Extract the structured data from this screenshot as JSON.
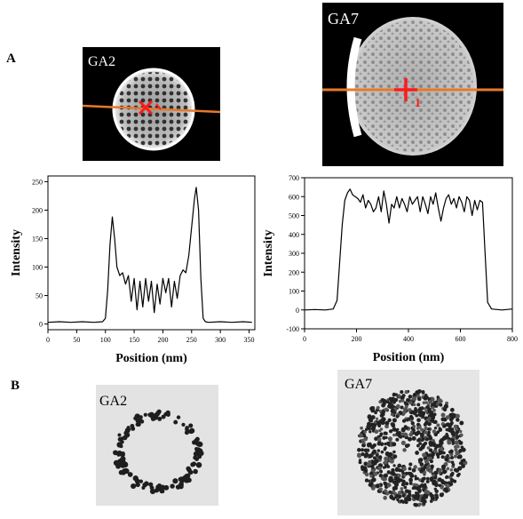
{
  "figure": {
    "panels": [
      {
        "letter": "A"
      },
      {
        "letter": "B"
      }
    ],
    "images": {
      "top_left_label": "GA2",
      "top_right_label": "GA7",
      "bottom_left_label": "GA2",
      "bottom_right_label": "GA7",
      "marker_label": "1"
    },
    "colors": {
      "profile_line": "#e8782a",
      "cursor": "#ff1a1a",
      "plot_line": "#000000"
    }
  },
  "chart_data": [
    {
      "type": "line",
      "title": "",
      "xlabel": "Position (nm)",
      "ylabel": "Intensity",
      "xlim": [
        0,
        360
      ],
      "ylim": [
        -10,
        260
      ],
      "xticks": [
        0,
        50,
        100,
        150,
        200,
        250,
        300,
        350
      ],
      "yticks": [
        0,
        50,
        100,
        150,
        200,
        250
      ],
      "grid": false,
      "series": [
        {
          "x": [
            0,
            20,
            40,
            60,
            80,
            95,
            100,
            104,
            108,
            112,
            116,
            120,
            125,
            130,
            135,
            140,
            145,
            150,
            155,
            160,
            165,
            170,
            175,
            180,
            185,
            190,
            195,
            200,
            205,
            210,
            215,
            220,
            225,
            230,
            235,
            240,
            245,
            250,
            255,
            258,
            262,
            266,
            270,
            274,
            280,
            300,
            320,
            340,
            355
          ],
          "y": [
            3,
            4,
            3,
            4,
            3,
            4,
            10,
            60,
            140,
            188,
            150,
            100,
            85,
            90,
            70,
            85,
            40,
            80,
            25,
            75,
            30,
            80,
            40,
            75,
            20,
            70,
            35,
            80,
            55,
            80,
            30,
            75,
            45,
            85,
            95,
            90,
            120,
            170,
            220,
            240,
            200,
            80,
            10,
            4,
            3,
            4,
            3,
            4,
            3
          ]
        }
      ]
    },
    {
      "type": "line",
      "title": "",
      "xlabel": "Position (nm)",
      "ylabel": "Intensity",
      "xlim": [
        0,
        800
      ],
      "ylim": [
        -100,
        700
      ],
      "xticks": [
        0,
        200,
        400,
        600,
        800
      ],
      "yticks": [
        -100,
        0,
        100,
        200,
        300,
        400,
        500,
        600,
        700
      ],
      "grid": false,
      "series": [
        {
          "x": [
            0,
            40,
            80,
            110,
            125,
            135,
            145,
            155,
            165,
            175,
            185,
            195,
            205,
            215,
            225,
            235,
            245,
            255,
            265,
            275,
            285,
            295,
            305,
            315,
            325,
            335,
            345,
            355,
            365,
            375,
            385,
            395,
            405,
            415,
            425,
            435,
            445,
            455,
            465,
            475,
            485,
            495,
            505,
            515,
            525,
            535,
            545,
            555,
            565,
            575,
            585,
            595,
            605,
            615,
            625,
            635,
            645,
            655,
            665,
            675,
            685,
            695,
            705,
            720,
            760,
            800
          ],
          "y": [
            0,
            2,
            0,
            5,
            50,
            250,
            450,
            580,
            620,
            640,
            610,
            600,
            590,
            570,
            610,
            540,
            580,
            560,
            520,
            540,
            600,
            520,
            630,
            560,
            460,
            560,
            540,
            600,
            540,
            590,
            560,
            520,
            600,
            560,
            580,
            600,
            520,
            600,
            560,
            510,
            600,
            560,
            620,
            540,
            470,
            540,
            590,
            610,
            560,
            590,
            540,
            600,
            570,
            520,
            600,
            580,
            500,
            580,
            530,
            580,
            570,
            300,
            40,
            5,
            0,
            5
          ]
        }
      ]
    }
  ]
}
